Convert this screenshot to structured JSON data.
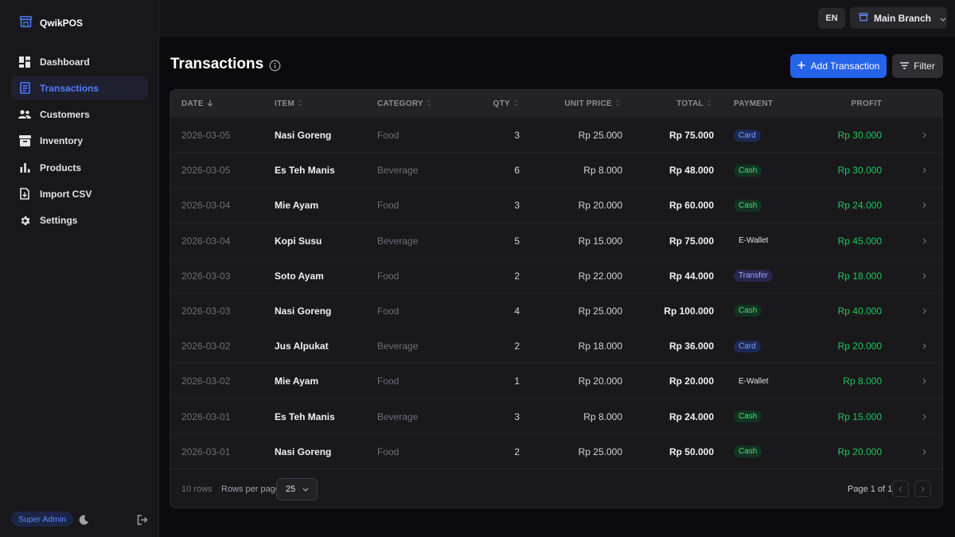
{
  "app": {
    "name": "QwikPOS"
  },
  "sidebar": {
    "items": [
      {
        "label": "Dashboard",
        "icon": "dashboard-icon"
      },
      {
        "label": "Transactions",
        "icon": "receipt-icon",
        "active": true
      },
      {
        "label": "Customers",
        "icon": "users-icon"
      },
      {
        "label": "Inventory",
        "icon": "archive-box-icon"
      },
      {
        "label": "Products",
        "icon": "bar-chart-icon"
      },
      {
        "label": "Import CSV",
        "icon": "file-import-icon"
      },
      {
        "label": "Settings",
        "icon": "gear-icon"
      }
    ],
    "role": "Super Admin"
  },
  "topbar": {
    "language": "EN",
    "branch": "Main Branch"
  },
  "page": {
    "title": "Transactions",
    "add_label": "Add Transaction",
    "filter_label": "Filter"
  },
  "table": {
    "columns": {
      "date": "DATE",
      "item": "ITEM",
      "category": "CATEGORY",
      "qty": "QTY",
      "unit_price": "UNIT PRICE",
      "total": "TOTAL",
      "payment": "PAYMENT",
      "profit": "PROFIT"
    },
    "rows": [
      {
        "date": "2026-03-05",
        "item": "Nasi Goreng",
        "category": "Food",
        "qty": "3",
        "unit_price": "Rp 25.000",
        "total": "Rp 75.000",
        "payment": "Card",
        "profit": "Rp 30.000"
      },
      {
        "date": "2026-03-05",
        "item": "Es Teh Manis",
        "category": "Beverage",
        "qty": "6",
        "unit_price": "Rp 8.000",
        "total": "Rp 48.000",
        "payment": "Cash",
        "profit": "Rp 30.000"
      },
      {
        "date": "2026-03-04",
        "item": "Mie Ayam",
        "category": "Food",
        "qty": "3",
        "unit_price": "Rp 20.000",
        "total": "Rp 60.000",
        "payment": "Cash",
        "profit": "Rp 24.000"
      },
      {
        "date": "2026-03-04",
        "item": "Kopi Susu",
        "category": "Beverage",
        "qty": "5",
        "unit_price": "Rp 15.000",
        "total": "Rp 75.000",
        "payment": "E-Wallet",
        "profit": "Rp 45.000"
      },
      {
        "date": "2026-03-03",
        "item": "Soto Ayam",
        "category": "Food",
        "qty": "2",
        "unit_price": "Rp 22.000",
        "total": "Rp 44.000",
        "payment": "Transfer",
        "profit": "Rp 18.000"
      },
      {
        "date": "2026-03-03",
        "item": "Nasi Goreng",
        "category": "Food",
        "qty": "4",
        "unit_price": "Rp 25.000",
        "total": "Rp 100.000",
        "payment": "Cash",
        "profit": "Rp 40.000"
      },
      {
        "date": "2026-03-02",
        "item": "Jus Alpukat",
        "category": "Beverage",
        "qty": "2",
        "unit_price": "Rp 18.000",
        "total": "Rp 36.000",
        "payment": "Card",
        "profit": "Rp 20.000"
      },
      {
        "date": "2026-03-02",
        "item": "Mie Ayam",
        "category": "Food",
        "qty": "1",
        "unit_price": "Rp 20.000",
        "total": "Rp 20.000",
        "payment": "E-Wallet",
        "profit": "Rp 8.000"
      },
      {
        "date": "2026-03-01",
        "item": "Es Teh Manis",
        "category": "Beverage",
        "qty": "3",
        "unit_price": "Rp 8.000",
        "total": "Rp 24.000",
        "payment": "Cash",
        "profit": "Rp 15.000"
      },
      {
        "date": "2026-03-01",
        "item": "Nasi Goreng",
        "category": "Food",
        "qty": "2",
        "unit_price": "Rp 25.000",
        "total": "Rp 50.000",
        "payment": "Cash",
        "profit": "Rp 20.000"
      }
    ],
    "footer": {
      "rows_count": "10 rows",
      "rows_per_page_label": "Rows per page",
      "rows_per_page": "25",
      "page_info": "Page 1 of 1"
    }
  },
  "colors": {
    "accent": "#2563eb",
    "profit": "#22c55e",
    "background": "#0b0b0d"
  }
}
